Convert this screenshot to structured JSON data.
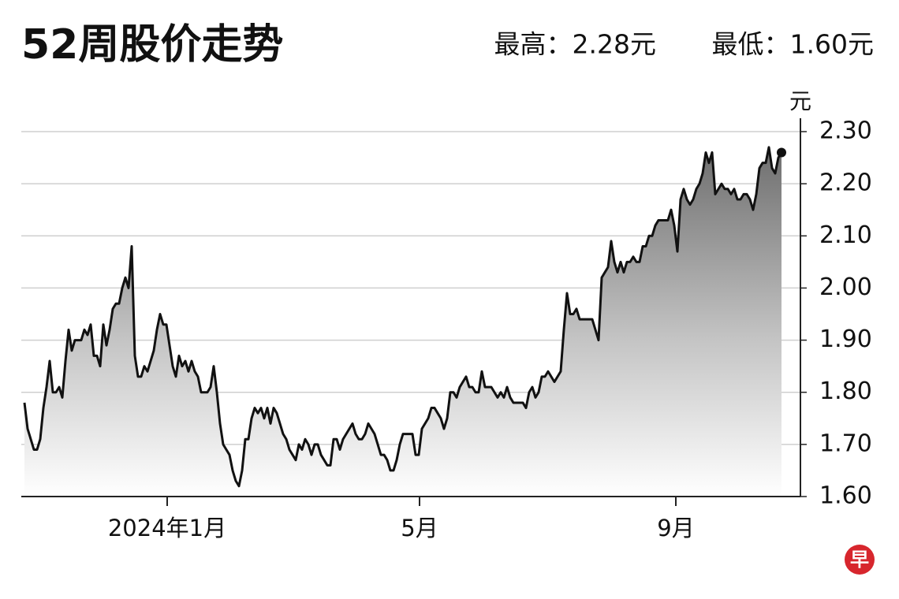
{
  "title": "52周股价走势",
  "high": "最高：2.28元",
  "low": "最低：1.60元",
  "logo": "早",
  "chart_data": {
    "type": "line",
    "y_label": "元",
    "color": "#111111",
    "grid": true,
    "area": true,
    "ylim": [
      1.6,
      2.3
    ],
    "yticks": [
      {
        "value": 1.6,
        "label": "1.60"
      },
      {
        "value": 1.7,
        "label": "1.70"
      },
      {
        "value": 1.8,
        "label": "1.80"
      },
      {
        "value": 1.9,
        "label": "1.90"
      },
      {
        "value": 2.0,
        "label": "2.00"
      },
      {
        "value": 2.1,
        "label": "2.10"
      },
      {
        "value": 2.2,
        "label": "2.20"
      },
      {
        "value": 2.3,
        "label": "2.30"
      }
    ],
    "xlim": [
      -1,
      246
    ],
    "xticks": [
      {
        "value": 45.25,
        "label": "2024年1月"
      },
      {
        "value": 125.25,
        "label": "5月"
      },
      {
        "value": 206.5,
        "label": "9月"
      }
    ],
    "values": [
      1.78,
      1.73,
      1.71,
      1.69,
      1.69,
      1.71,
      1.77,
      1.81,
      1.86,
      1.8,
      1.8,
      1.81,
      1.79,
      1.86,
      1.92,
      1.88,
      1.9,
      1.9,
      1.9,
      1.92,
      1.91,
      1.93,
      1.87,
      1.87,
      1.85,
      1.93,
      1.89,
      1.92,
      1.96,
      1.97,
      1.97,
      2.0,
      2.02,
      2.0,
      2.08,
      1.87,
      1.83,
      1.83,
      1.85,
      1.84,
      1.86,
      1.88,
      1.92,
      1.95,
      1.93,
      1.93,
      1.89,
      1.85,
      1.83,
      1.87,
      1.85,
      1.86,
      1.84,
      1.86,
      1.84,
      1.83,
      1.8,
      1.8,
      1.8,
      1.81,
      1.85,
      1.8,
      1.74,
      1.7,
      1.69,
      1.68,
      1.65,
      1.63,
      1.62,
      1.65,
      1.71,
      1.71,
      1.75,
      1.77,
      1.76,
      1.77,
      1.75,
      1.77,
      1.74,
      1.77,
      1.76,
      1.74,
      1.72,
      1.71,
      1.69,
      1.68,
      1.67,
      1.7,
      1.69,
      1.71,
      1.7,
      1.68,
      1.7,
      1.7,
      1.68,
      1.67,
      1.66,
      1.66,
      1.71,
      1.71,
      1.69,
      1.71,
      1.72,
      1.73,
      1.74,
      1.72,
      1.71,
      1.71,
      1.72,
      1.74,
      1.73,
      1.72,
      1.7,
      1.68,
      1.68,
      1.67,
      1.65,
      1.65,
      1.67,
      1.7,
      1.72,
      1.72,
      1.72,
      1.72,
      1.68,
      1.68,
      1.73,
      1.74,
      1.75,
      1.77,
      1.77,
      1.76,
      1.75,
      1.73,
      1.75,
      1.8,
      1.8,
      1.79,
      1.81,
      1.82,
      1.83,
      1.81,
      1.81,
      1.8,
      1.8,
      1.84,
      1.81,
      1.81,
      1.81,
      1.8,
      1.79,
      1.8,
      1.79,
      1.81,
      1.79,
      1.78,
      1.78,
      1.78,
      1.78,
      1.77,
      1.8,
      1.81,
      1.79,
      1.8,
      1.83,
      1.83,
      1.84,
      1.83,
      1.82,
      1.83,
      1.84,
      1.92,
      1.99,
      1.95,
      1.95,
      1.96,
      1.94,
      1.94,
      1.94,
      1.94,
      1.94,
      1.92,
      1.9,
      2.02,
      2.03,
      2.04,
      2.09,
      2.05,
      2.03,
      2.05,
      2.03,
      2.05,
      2.05,
      2.06,
      2.05,
      2.05,
      2.08,
      2.08,
      2.1,
      2.1,
      2.12,
      2.13,
      2.13,
      2.13,
      2.13,
      2.15,
      2.12,
      2.07,
      2.17,
      2.19,
      2.17,
      2.16,
      2.17,
      2.19,
      2.2,
      2.22,
      2.26,
      2.24,
      2.26,
      2.18,
      2.19,
      2.2,
      2.19,
      2.19,
      2.18,
      2.19,
      2.17,
      2.17,
      2.18,
      2.18,
      2.17,
      2.15,
      2.18,
      2.23,
      2.24,
      2.24,
      2.27,
      2.23,
      2.22,
      2.25,
      2.26
    ]
  }
}
